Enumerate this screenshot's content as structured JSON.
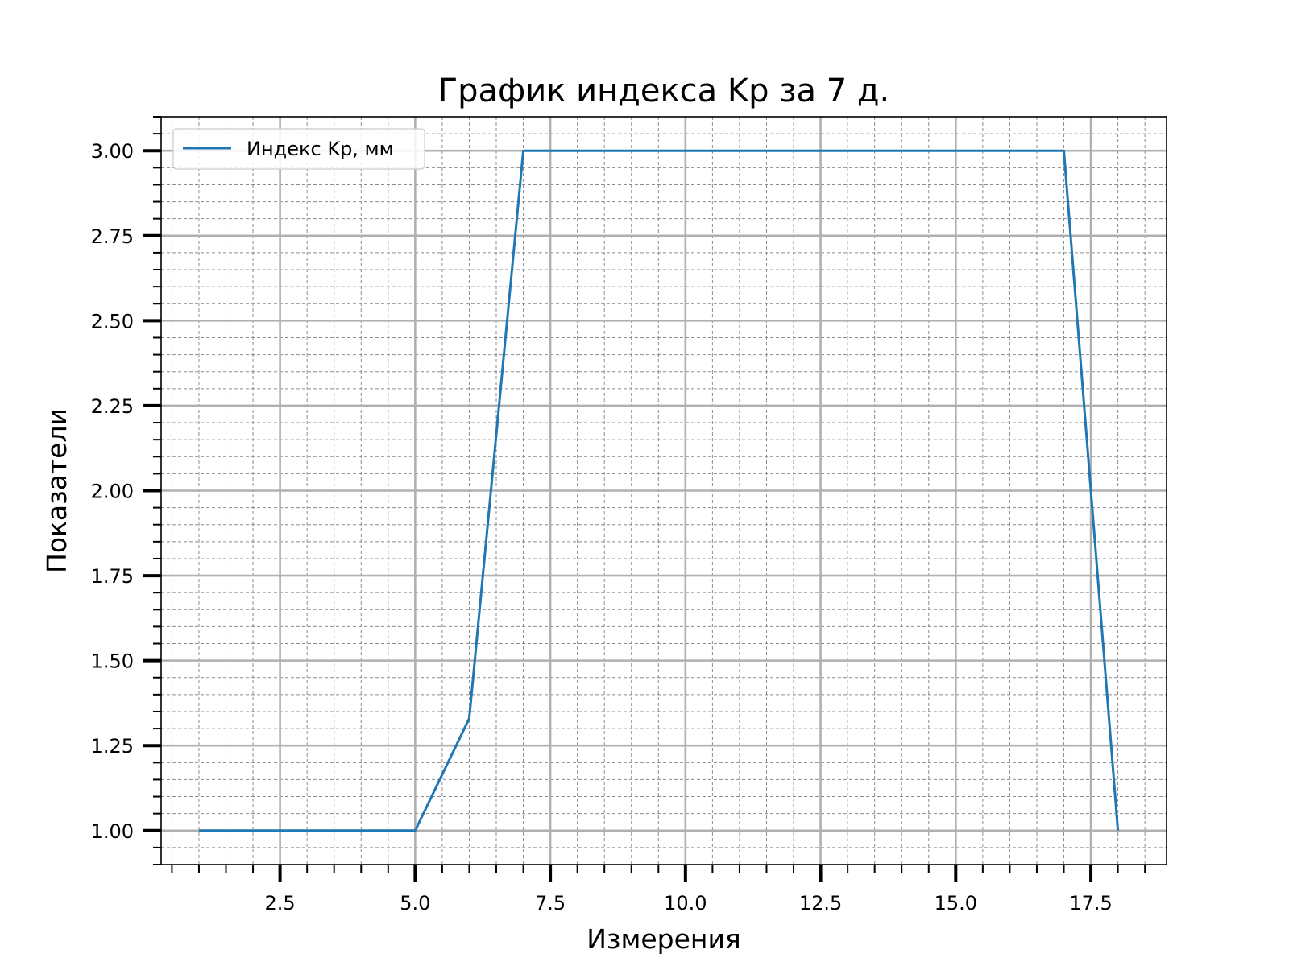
{
  "chart_data": {
    "type": "line",
    "title": "График индекса Kp за 7 д.",
    "xlabel": "Измерения",
    "ylabel": "Показатели",
    "xlim": [
      0.3,
      18.9
    ],
    "ylim": [
      0.9,
      3.1
    ],
    "x_ticks": [
      2.5,
      5.0,
      7.5,
      10.0,
      12.5,
      15.0,
      17.5
    ],
    "x_tick_labels": [
      "2.5",
      "5.0",
      "7.5",
      "10.0",
      "12.5",
      "15.0",
      "17.5"
    ],
    "x_minor_step": 0.5,
    "y_ticks": [
      1.0,
      1.25,
      1.5,
      1.75,
      2.0,
      2.25,
      2.5,
      2.75,
      3.0
    ],
    "y_tick_labels": [
      "1.00",
      "1.25",
      "1.50",
      "1.75",
      "2.00",
      "2.25",
      "2.50",
      "2.75",
      "3.00"
    ],
    "y_minor_step": 0.05,
    "grid": true,
    "legend_position": "top-left",
    "series": [
      {
        "name": "Индекс Kp, мм",
        "color": "#1f77b4",
        "x": [
          1,
          2,
          3,
          4,
          5,
          6,
          7,
          8,
          9,
          10,
          11,
          12,
          13,
          14,
          15,
          16,
          17,
          18
        ],
        "y": [
          1,
          1,
          1,
          1,
          1,
          1.33,
          3,
          3,
          3,
          3,
          3,
          3,
          3,
          3,
          3,
          3,
          3,
          1
        ]
      }
    ]
  }
}
